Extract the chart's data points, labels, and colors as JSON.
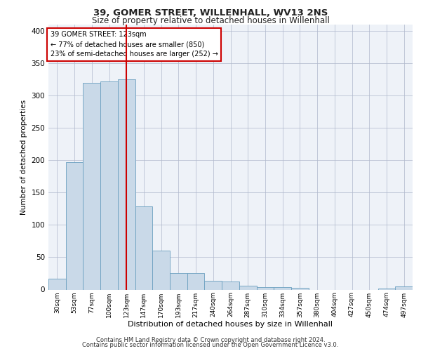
{
  "title1": "39, GOMER STREET, WILLENHALL, WV13 2NS",
  "title2": "Size of property relative to detached houses in Willenhall",
  "xlabel": "Distribution of detached houses by size in Willenhall",
  "ylabel": "Number of detached properties",
  "footer1": "Contains HM Land Registry data © Crown copyright and database right 2024.",
  "footer2": "Contains public sector information licensed under the Open Government Licence v3.0.",
  "annotation_title": "39 GOMER STREET: 123sqm",
  "annotation_line1": "← 77% of detached houses are smaller (850)",
  "annotation_line2": "23% of semi-detached houses are larger (252) →",
  "property_size": 123,
  "bar_labels": [
    "30sqm",
    "53sqm",
    "77sqm",
    "100sqm",
    "123sqm",
    "147sqm",
    "170sqm",
    "193sqm",
    "217sqm",
    "240sqm",
    "264sqm",
    "287sqm",
    "310sqm",
    "334sqm",
    "357sqm",
    "380sqm",
    "404sqm",
    "427sqm",
    "450sqm",
    "474sqm",
    "497sqm"
  ],
  "bar_values": [
    17,
    197,
    320,
    322,
    325,
    129,
    60,
    25,
    25,
    14,
    12,
    6,
    4,
    4,
    3,
    0,
    0,
    0,
    0,
    2,
    5
  ],
  "bar_color": "#c9d9e8",
  "bar_edge_color": "#6a9fc0",
  "vline_x_index": 4,
  "vline_color": "#cc0000",
  "bg_color": "#eef2f8",
  "grid_color": "#b0b8cc",
  "annotation_box_color": "#cc0000",
  "ylim": [
    0,
    410
  ],
  "yticks": [
    0,
    50,
    100,
    150,
    200,
    250,
    300,
    350,
    400
  ]
}
